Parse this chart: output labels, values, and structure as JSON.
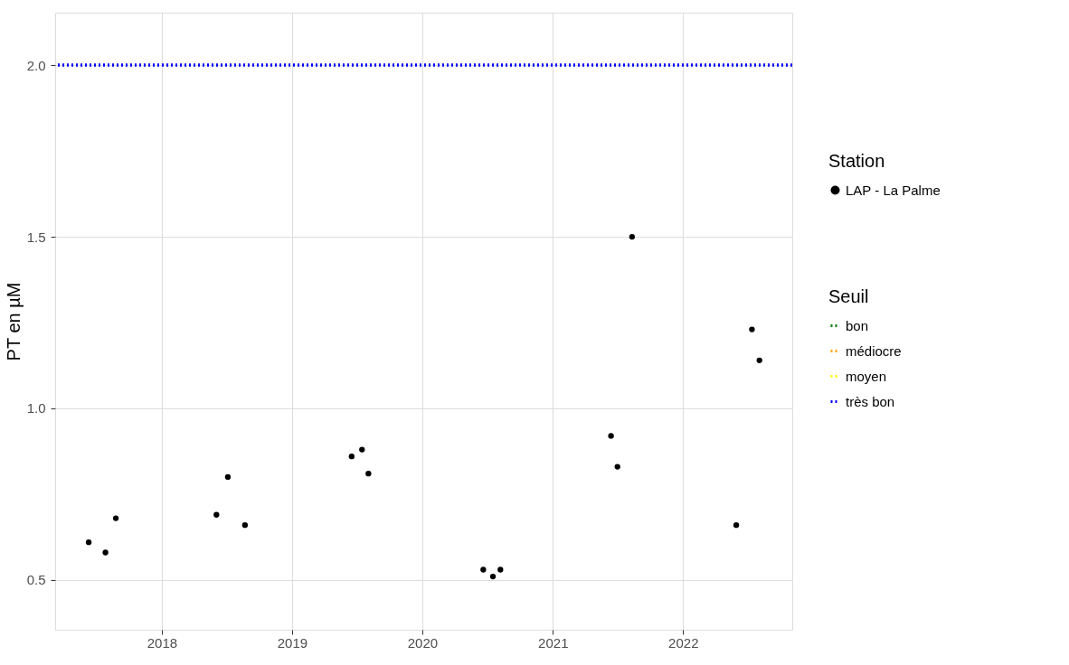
{
  "chart_data": {
    "type": "scatter",
    "ylabel": "PT en µM",
    "legend_title": [
      "Station",
      "Seuil"
    ],
    "xlim": [
      "2017-03-08",
      "2022-11-03"
    ],
    "xticks": [
      "2018",
      "2019",
      "2020",
      "2021",
      "2022"
    ],
    "ylim": [
      0.355,
      2.153
    ],
    "yticks": [
      {
        "value": 0.5,
        "label": "0.5"
      },
      {
        "value": 1.0,
        "label": "1.0"
      },
      {
        "value": 1.5,
        "label": "1.5"
      },
      {
        "value": 2.0,
        "label": "2.0"
      }
    ],
    "grid": true,
    "legend": "right",
    "marker": "circle",
    "series": [
      {
        "name": "LAP - La Palme",
        "color": "#000000",
        "x": [
          "2017-06-10",
          "2017-07-27",
          "2017-08-25",
          "2018-06-03",
          "2018-07-05",
          "2018-08-22",
          "2019-06-17",
          "2019-07-16",
          "2019-08-03",
          "2020-06-20",
          "2020-07-17",
          "2020-08-07",
          "2021-06-13",
          "2021-07-01",
          "2021-08-11",
          "2022-05-30",
          "2022-07-13",
          "2022-08-03"
        ],
        "values": [
          0.61,
          0.58,
          0.68,
          0.69,
          0.8,
          0.66,
          0.86,
          0.88,
          0.81,
          0.53,
          0.51,
          0.53,
          0.92,
          0.83,
          1.5,
          0.66,
          1.23,
          1.14
        ]
      },
      {
        "name": "bon",
        "type": "line",
        "color": "#008000",
        "line_style": "dotted"
      },
      {
        "name": "médiocre",
        "type": "line",
        "color": "#ffa500",
        "line_style": "dotted"
      },
      {
        "name": "moyen",
        "type": "line",
        "color": "#ffff00",
        "line_style": "dotted"
      }
    ],
    "ref_lines": [
      {
        "axis": "y",
        "value": 2.0,
        "label": "très bon",
        "color": "#0000ff",
        "line_style": "dotted"
      }
    ]
  }
}
